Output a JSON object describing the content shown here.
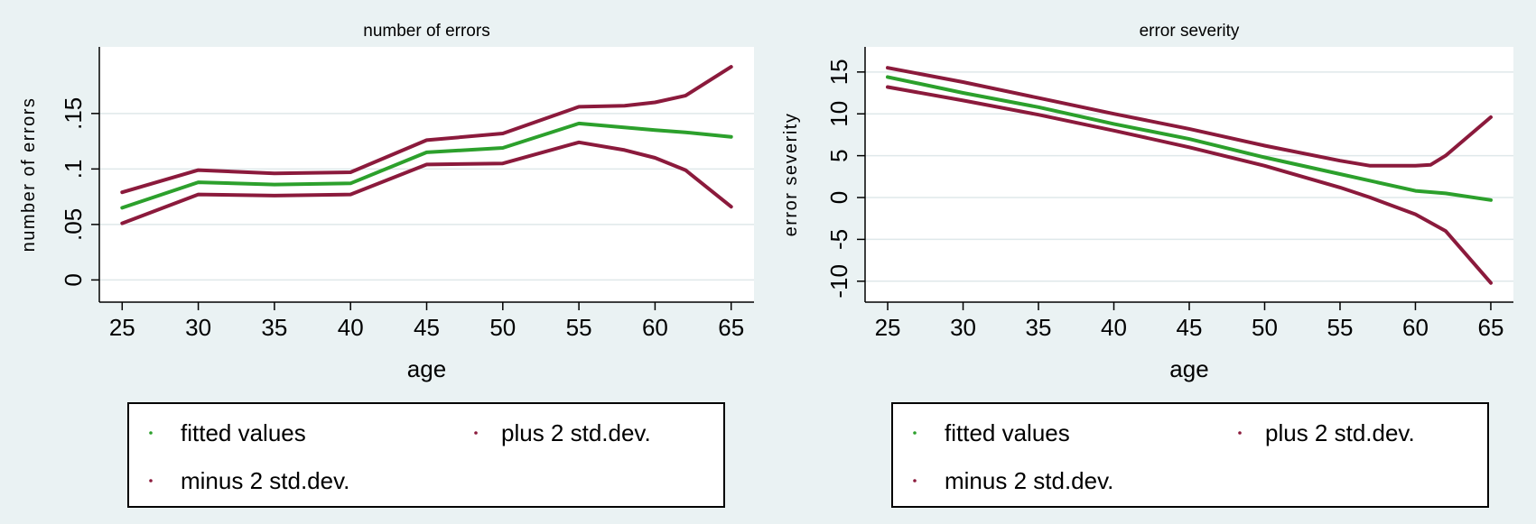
{
  "colors": {
    "background": "#eaf2f3",
    "plot_area": "#ffffff",
    "fitted": "#2ca02c",
    "bands": "#8b1a3c",
    "grid": "#dfe8ea",
    "frame": "#000000"
  },
  "chart_data": [
    {
      "type": "line",
      "title": "number of errors",
      "xlabel": "age",
      "ylabel": "number of errors",
      "xlim": [
        23.5,
        66.5
      ],
      "ylim": [
        -0.02,
        0.21
      ],
      "xticks": [
        25,
        30,
        35,
        40,
        45,
        50,
        55,
        60,
        65
      ],
      "xtick_labels": [
        "25",
        "30",
        "35",
        "40",
        "45",
        "50",
        "55",
        "60",
        "65"
      ],
      "yticks": [
        0,
        0.05,
        0.1,
        0.15
      ],
      "ytick_labels": [
        "0",
        ".05",
        ".1",
        ".15"
      ],
      "grid": true,
      "legend_position": "bottom",
      "series": [
        {
          "name": "fitted values",
          "color": "#2ca02c",
          "x": [
            25,
            30,
            35,
            40,
            45,
            50,
            55,
            60,
            62,
            65
          ],
          "y": [
            0.065,
            0.088,
            0.086,
            0.087,
            0.115,
            0.119,
            0.141,
            0.135,
            0.133,
            0.129
          ]
        },
        {
          "name": "plus 2 std.dev.",
          "color": "#8b1a3c",
          "x": [
            25,
            30,
            35,
            40,
            45,
            50,
            55,
            58,
            60,
            62,
            65
          ],
          "y": [
            0.079,
            0.099,
            0.096,
            0.097,
            0.126,
            0.132,
            0.156,
            0.157,
            0.16,
            0.166,
            0.192
          ]
        },
        {
          "name": "minus 2 std.dev.",
          "color": "#8b1a3c",
          "x": [
            25,
            30,
            35,
            40,
            45,
            50,
            55,
            58,
            60,
            62,
            65
          ],
          "y": [
            0.051,
            0.077,
            0.076,
            0.077,
            0.104,
            0.105,
            0.124,
            0.117,
            0.11,
            0.099,
            0.066
          ]
        }
      ],
      "legend": [
        {
          "label": "fitted values",
          "color": "#2ca02c"
        },
        {
          "label": "plus 2 std.dev.",
          "color": "#8b1a3c"
        },
        {
          "label": "minus 2 std.dev.",
          "color": "#8b1a3c"
        }
      ]
    },
    {
      "type": "line",
      "title": "error severity",
      "xlabel": "age",
      "ylabel": "error severity",
      "xlim": [
        23.5,
        66.5
      ],
      "ylim": [
        -12.5,
        18
      ],
      "xticks": [
        25,
        30,
        35,
        40,
        45,
        50,
        55,
        60,
        65
      ],
      "xtick_labels": [
        "25",
        "30",
        "35",
        "40",
        "45",
        "50",
        "55",
        "60",
        "65"
      ],
      "yticks": [
        -10,
        -5,
        0,
        5,
        10,
        15
      ],
      "ytick_labels": [
        "-10",
        "-5",
        "0",
        "5",
        "10",
        "15"
      ],
      "grid": true,
      "legend_position": "bottom",
      "series": [
        {
          "name": "fitted values",
          "color": "#2ca02c",
          "x": [
            25,
            30,
            35,
            40,
            45,
            50,
            55,
            60,
            62,
            65
          ],
          "y": [
            14.4,
            12.5,
            10.8,
            8.8,
            7.0,
            4.8,
            2.8,
            0.8,
            0.5,
            -0.3
          ]
        },
        {
          "name": "plus 2 std.dev.",
          "color": "#8b1a3c",
          "x": [
            25,
            30,
            35,
            40,
            45,
            50,
            55,
            57,
            60,
            61,
            62,
            65
          ],
          "y": [
            15.5,
            13.8,
            11.9,
            10.0,
            8.2,
            6.2,
            4.4,
            3.8,
            3.8,
            3.9,
            5.0,
            9.6
          ]
        },
        {
          "name": "minus 2 std.dev.",
          "color": "#8b1a3c",
          "x": [
            25,
            30,
            35,
            40,
            45,
            50,
            55,
            57,
            60,
            62,
            65
          ],
          "y": [
            13.2,
            11.6,
            9.9,
            8.0,
            6.0,
            3.8,
            1.2,
            0.0,
            -2.0,
            -4.0,
            -10.2
          ]
        }
      ],
      "legend": [
        {
          "label": "fitted values",
          "color": "#2ca02c"
        },
        {
          "label": "plus 2 std.dev.",
          "color": "#8b1a3c"
        },
        {
          "label": "minus 2 std.dev.",
          "color": "#8b1a3c"
        }
      ]
    }
  ]
}
